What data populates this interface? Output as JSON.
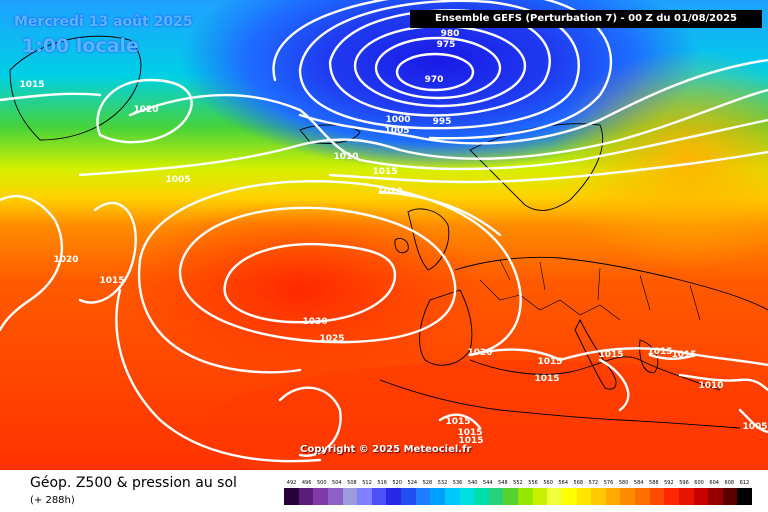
{
  "header": {
    "date": "Mercredi 13 août 2025",
    "time": "1:00 locale",
    "run": "Ensemble GEFS  (Perturbation 7)  -  00 Z du 01/08/2025"
  },
  "copyright": "Copyright © 2025 Meteociel.fr",
  "footer": {
    "title": "Géop. Z500 & pression au sol",
    "lead": "(+ 288h)"
  },
  "legend": {
    "ticks": [
      "492",
      "496",
      "500",
      "504",
      "508",
      "512",
      "516",
      "520",
      "524",
      "528",
      "532",
      "536",
      "540",
      "544",
      "548",
      "552",
      "556",
      "560",
      "564",
      "568",
      "572",
      "576",
      "580",
      "584",
      "588",
      "592",
      "596",
      "600",
      "604",
      "608",
      "612"
    ],
    "colors": [
      "#2a0038",
      "#5a1d78",
      "#7d3aa8",
      "#8f5fc8",
      "#9c9cdc",
      "#7f80ff",
      "#4f4ff8",
      "#2828e8",
      "#1f4ff0",
      "#1e7dff",
      "#00a0ff",
      "#00c8ff",
      "#00e0e0",
      "#00dcaa",
      "#28d278",
      "#55d232",
      "#96e600",
      "#c8f000",
      "#f0ff3c",
      "#ffff00",
      "#ffe600",
      "#ffc800",
      "#ffaa00",
      "#ff8c00",
      "#ff6e00",
      "#ff4b00",
      "#ff2800",
      "#e61400",
      "#c80000",
      "#960000",
      "#5a0000",
      "#000000"
    ]
  },
  "isobar_labels": [
    {
      "text": "980"
    },
    {
      "text": "975"
    },
    {
      "text": "970"
    },
    {
      "text": "995"
    },
    {
      "text": "1000"
    },
    {
      "text": "1005"
    },
    {
      "text": "1010"
    },
    {
      "text": "1015"
    },
    {
      "text": "1020"
    },
    {
      "text": "1020"
    },
    {
      "text": "1005"
    },
    {
      "text": "1015"
    },
    {
      "text": "1020"
    },
    {
      "text": "1015"
    },
    {
      "text": "1030"
    },
    {
      "text": "1025"
    },
    {
      "text": "1020"
    },
    {
      "text": "1015"
    },
    {
      "text": "1015"
    },
    {
      "text": "1015"
    },
    {
      "text": "1015"
    },
    {
      "text": "1015"
    },
    {
      "text": "1010"
    },
    {
      "text": "1015"
    },
    {
      "text": "1015"
    },
    {
      "text": "1015"
    },
    {
      "text": "1005"
    }
  ]
}
